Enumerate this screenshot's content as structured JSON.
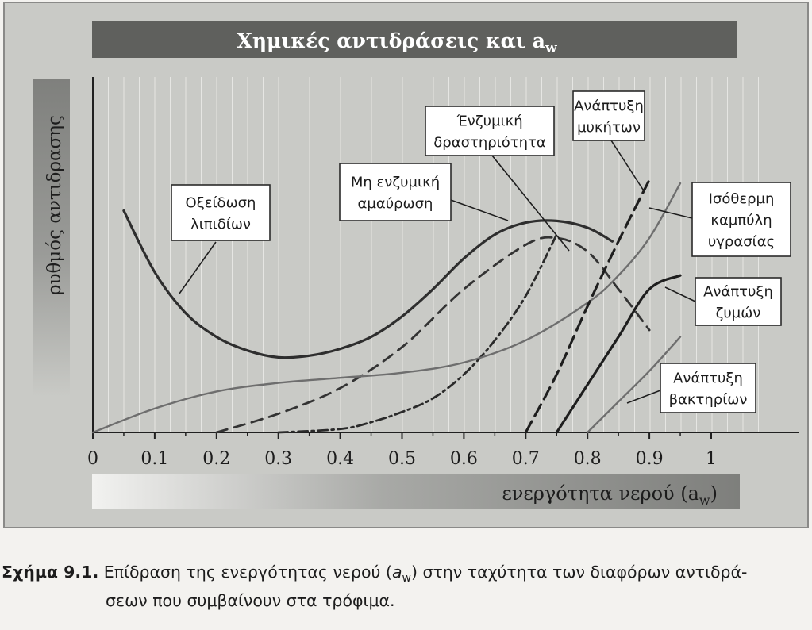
{
  "chart_data": {
    "type": "line",
    "title": "Χημικές αντιδράσεις και a",
    "title_subscript": "w",
    "ylabel": "ρυθμός αντιδρασης",
    "xlabel": "ενεργότητα νερού (a",
    "xlabel_subscript": "w",
    "xlabel_close": ")",
    "xlim": [
      0,
      1
    ],
    "x_ticks": [
      "0",
      "0.1",
      "0.2",
      "0.3",
      "0.4",
      "0.5",
      "0.6",
      "0.7",
      "0.8",
      "0.9",
      "1"
    ],
    "y_ticks_shown": false,
    "grid": "vertical",
    "series": [
      {
        "name": "Οξείδωση λιπιδίων",
        "label_lines": [
          "Οξείδωση",
          "λιπιδίων"
        ],
        "style": "solid-thick",
        "color": "#2e2e2e",
        "points": [
          [
            0.05,
            0.65
          ],
          [
            0.1,
            0.47
          ],
          [
            0.15,
            0.35
          ],
          [
            0.2,
            0.28
          ],
          [
            0.25,
            0.24
          ],
          [
            0.3,
            0.22
          ],
          [
            0.35,
            0.225
          ],
          [
            0.4,
            0.245
          ],
          [
            0.45,
            0.28
          ],
          [
            0.5,
            0.34
          ],
          [
            0.55,
            0.42
          ],
          [
            0.6,
            0.51
          ],
          [
            0.65,
            0.58
          ],
          [
            0.7,
            0.615
          ],
          [
            0.75,
            0.62
          ],
          [
            0.8,
            0.6
          ],
          [
            0.84,
            0.56
          ]
        ]
      },
      {
        "name": "Μη ενζυμική αμαύρωση",
        "label_lines": [
          "Μη ενζυμική",
          "αμαύρωση"
        ],
        "style": "dashed",
        "color": "#333333",
        "points": [
          [
            0.2,
            0.0
          ],
          [
            0.3,
            0.055
          ],
          [
            0.4,
            0.13
          ],
          [
            0.5,
            0.25
          ],
          [
            0.6,
            0.42
          ],
          [
            0.7,
            0.55
          ],
          [
            0.75,
            0.57
          ],
          [
            0.8,
            0.53
          ],
          [
            0.85,
            0.42
          ],
          [
            0.9,
            0.3
          ]
        ]
      },
      {
        "name": "Ένζυμική δραστηριότητα",
        "label_lines": [
          "Ένζυμική",
          "δραστηριότητα"
        ],
        "style": "dash-dot",
        "color": "#2a2a2a",
        "points": [
          [
            0.3,
            0.0
          ],
          [
            0.4,
            0.01
          ],
          [
            0.45,
            0.03
          ],
          [
            0.5,
            0.06
          ],
          [
            0.55,
            0.1
          ],
          [
            0.6,
            0.17
          ],
          [
            0.65,
            0.27
          ],
          [
            0.7,
            0.4
          ],
          [
            0.75,
            0.58
          ]
        ]
      },
      {
        "name": "Ισόθερμη καμπύλη υγρασίας",
        "label_lines": [
          "Ισόθερμη",
          "καμπύλη",
          "υγρασίας"
        ],
        "style": "solid-thin",
        "color": "#6e6e6e",
        "points": [
          [
            0.0,
            0.0
          ],
          [
            0.1,
            0.07
          ],
          [
            0.2,
            0.12
          ],
          [
            0.3,
            0.145
          ],
          [
            0.4,
            0.16
          ],
          [
            0.5,
            0.175
          ],
          [
            0.6,
            0.205
          ],
          [
            0.7,
            0.27
          ],
          [
            0.8,
            0.38
          ],
          [
            0.85,
            0.46
          ],
          [
            0.9,
            0.57
          ],
          [
            0.95,
            0.73
          ]
        ]
      },
      {
        "name": "Ανάπτυξη μυκήτων",
        "label_lines": [
          "Ανάπτυξη",
          "μυκήτων"
        ],
        "style": "dashed-thick",
        "color": "#1e1e1e",
        "points": [
          [
            0.7,
            0.0
          ],
          [
            0.75,
            0.17
          ],
          [
            0.8,
            0.37
          ],
          [
            0.85,
            0.56
          ],
          [
            0.9,
            0.74
          ]
        ]
      },
      {
        "name": "Ανάπτυξη ζυμών",
        "label_lines": [
          "Ανάπτυξη",
          "ζυμών"
        ],
        "style": "solid-thick",
        "color": "#1e1e1e",
        "points": [
          [
            0.75,
            0.0
          ],
          [
            0.8,
            0.14
          ],
          [
            0.85,
            0.28
          ],
          [
            0.9,
            0.42
          ],
          [
            0.95,
            0.46
          ]
        ]
      },
      {
        "name": "Ανάπτυξη βακτηρίων",
        "label_lines": [
          "Ανάπτυξη",
          "βακτηρίων"
        ],
        "style": "solid-thin",
        "color": "#6e6e6e",
        "points": [
          [
            0.8,
            0.0
          ],
          [
            0.85,
            0.09
          ],
          [
            0.9,
            0.18
          ],
          [
            0.95,
            0.28
          ]
        ]
      }
    ]
  },
  "caption": {
    "label": "Σχήμα 9.1.",
    "line1_text": " Επίδραση της ενεργότητας νερού (",
    "aw": "a",
    "aw_sub": "w",
    "line1_rest": ") στην ταχύτητα των διαφόρων αντιδρά-",
    "line2": "σεων που συμβαίνουν στα τρόφιμα."
  }
}
